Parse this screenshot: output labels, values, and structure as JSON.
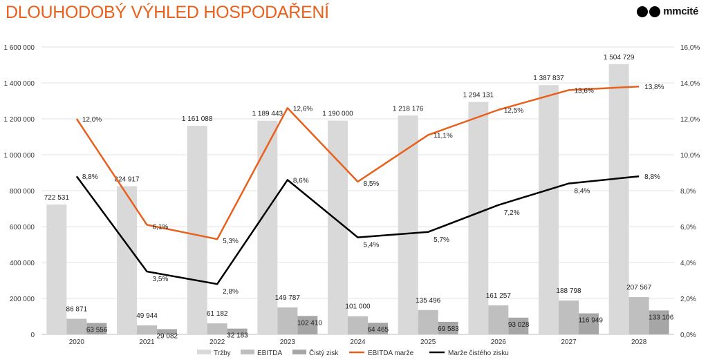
{
  "header": {
    "title": "DLOUHODOBÝ VÝHLED HOSPODAŘENÍ",
    "logo_text": "mmcité"
  },
  "colors": {
    "title": "#e8601c",
    "trzby": "#d9d9d9",
    "ebitda": "#bfbfbf",
    "cisty_zisk": "#a6a6a6",
    "ebitda_marze": "#e8601c",
    "marze_cisteho_zisku": "#000000"
  },
  "chart_data": {
    "type": "bar",
    "categories": [
      "2020",
      "2021",
      "2022",
      "2023",
      "2024",
      "2025",
      "2026",
      "2027",
      "2028"
    ],
    "series": [
      {
        "name": "Tržby",
        "type": "bar",
        "axis": "left",
        "values": [
          722531,
          824917,
          1161088,
          1189443,
          1190000,
          1218176,
          1294131,
          1387837,
          1504729
        ],
        "labels": [
          "722 531",
          "824 917",
          "1 161 088",
          "1 189 443",
          "1 190 000",
          "1 218 176",
          "1 294 131",
          "1 387 837",
          "1 504 729"
        ]
      },
      {
        "name": "EBITDA",
        "type": "bar",
        "axis": "left",
        "values": [
          86871,
          49944,
          61182,
          149787,
          101000,
          135496,
          161257,
          188798,
          207567
        ],
        "labels": [
          "86 871",
          "49 944",
          "61 182",
          "149 787",
          "101 000",
          "135 496",
          "161 257",
          "188 798",
          "207 567"
        ]
      },
      {
        "name": "Čistý zisk",
        "type": "bar",
        "axis": "left",
        "values": [
          63556,
          29082,
          32183,
          102410,
          64465,
          69583,
          93028,
          116949,
          133106
        ],
        "labels": [
          "63 556",
          "29 082",
          "32 183",
          "102 410",
          "64 465",
          "69 583",
          "93 028",
          "116 949",
          "133 106"
        ]
      },
      {
        "name": "EBITDA marže",
        "type": "line",
        "axis": "right",
        "values": [
          12.0,
          6.1,
          5.3,
          12.6,
          8.5,
          11.1,
          12.5,
          13.6,
          13.8
        ],
        "labels": [
          "12,0%",
          "6,1%",
          "5,3%",
          "12,6%",
          "8,5%",
          "11,1%",
          "12,5%",
          "13,6%",
          "13,8%"
        ]
      },
      {
        "name": "Marže čistého zisku",
        "type": "line",
        "axis": "right",
        "values": [
          8.8,
          3.5,
          2.8,
          8.6,
          5.4,
          5.7,
          7.2,
          8.4,
          8.8
        ],
        "labels": [
          "8,8%",
          "3,5%",
          "2,8%",
          "8,6%",
          "5,4%",
          "5,7%",
          "7,2%",
          "8,4%",
          "8,8%"
        ]
      }
    ],
    "y_left": {
      "min": 0,
      "max": 1600000,
      "ticks": [
        0,
        200000,
        400000,
        600000,
        800000,
        1000000,
        1200000,
        1400000,
        1600000
      ],
      "tick_labels": [
        "0",
        "200 000",
        "400 000",
        "600 000",
        "800 000",
        "1 000 000",
        "1 200 000",
        "1 400 000",
        "1 600 000"
      ]
    },
    "y_right": {
      "min": 0,
      "max": 16,
      "ticks": [
        0,
        2,
        4,
        6,
        8,
        10,
        12,
        14,
        16
      ],
      "tick_labels": [
        "0,0%",
        "2,0%",
        "4,0%",
        "6,0%",
        "8,0%",
        "10,0%",
        "12,0%",
        "14,0%",
        "16,0%"
      ]
    },
    "grid": true,
    "legend_position": "bottom"
  }
}
